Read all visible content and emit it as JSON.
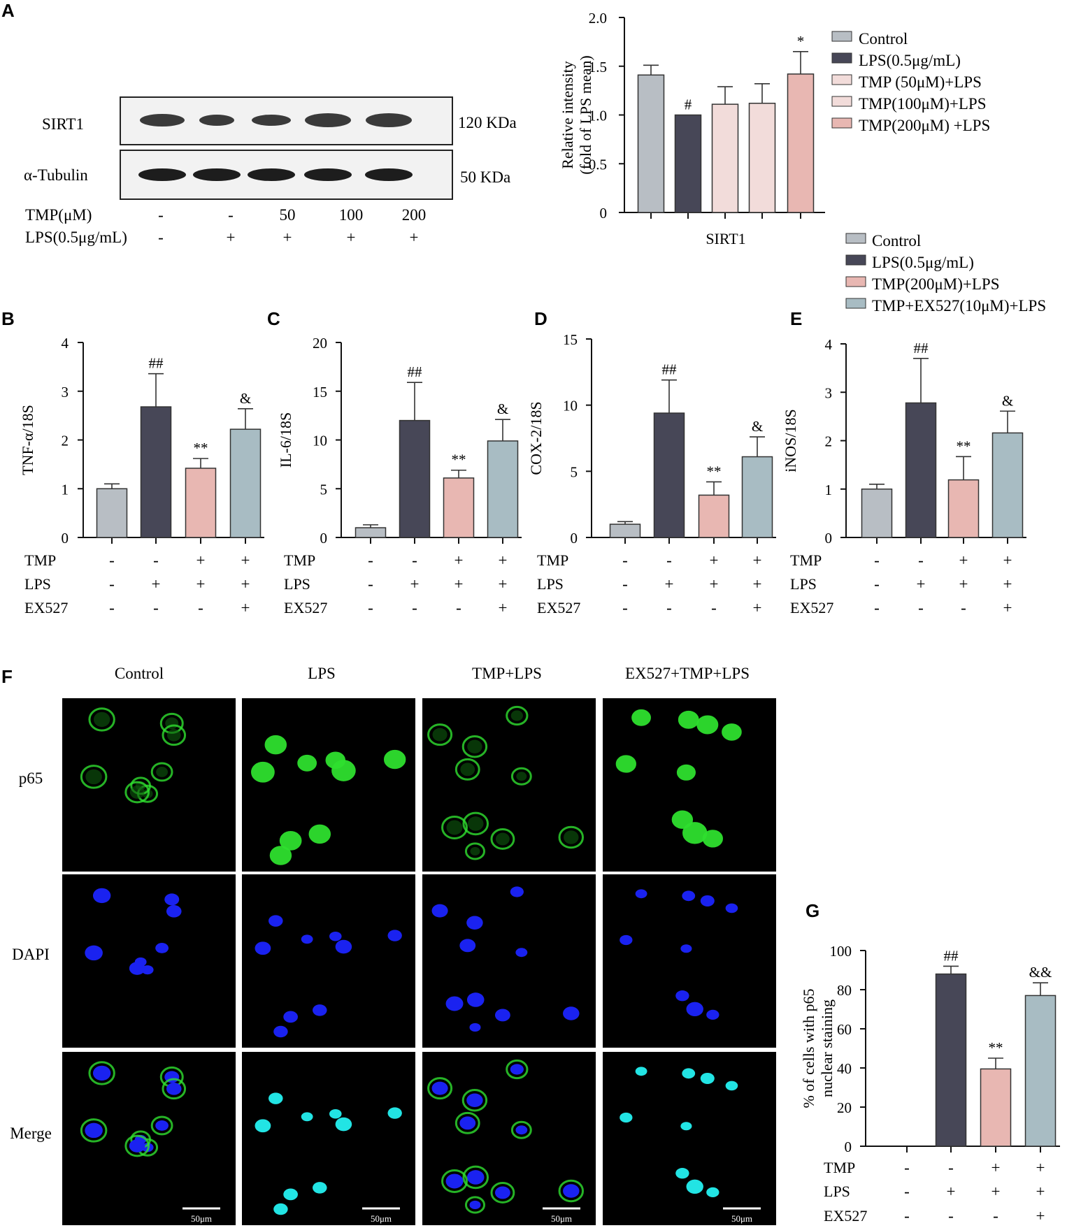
{
  "colors": {
    "control": "#B8BEC4",
    "lps": "#474757",
    "tmp_light": "#F2DCDA",
    "tmp200": "#E8B7B2",
    "ex527": "#A8BCC3",
    "p65": "#2FE02F",
    "dapi": "#1A22F0",
    "merge": "#22E4E4"
  },
  "panels": {
    "A": "A",
    "B": "B",
    "C": "C",
    "D": "D",
    "E": "E",
    "F": "F",
    "G": "G"
  },
  "blot": {
    "sirt1_label": "SIRT1",
    "tubulin_label": "α-Tubulin",
    "sirt1_kda": "120 KDa",
    "tubulin_kda": "50 KDa",
    "treat_rows": [
      {
        "label": "TMP(μM)",
        "values": [
          "-",
          "-",
          "50",
          "100",
          "200"
        ]
      },
      {
        "label": "LPS(0.5μg/mL)",
        "values": [
          "-",
          "+",
          "+",
          "+",
          "+"
        ]
      }
    ]
  },
  "legend_a": [
    "Control",
    "LPS(0.5μg/mL)",
    "TMP (50μM)+LPS",
    "TMP(100μM)+LPS",
    "TMP(200μM) +LPS"
  ],
  "legend_b": [
    "Control",
    "LPS(0.5μg/mL)",
    "TMP(200μM)+LPS",
    "TMP+EX527(10μM)+LPS"
  ],
  "treat_labels": [
    "TMP",
    "LPS",
    "EX527"
  ],
  "treat_signs": [
    [
      "-",
      "-",
      "+",
      "+"
    ],
    [
      "-",
      "+",
      "+",
      "+"
    ],
    [
      "-",
      "-",
      "-",
      "+"
    ]
  ],
  "chart_data": [
    {
      "panel": "A",
      "type": "bar",
      "categories": [
        "Control",
        "LPS(0.5μg/mL)",
        "TMP (50μM)+LPS",
        "TMP(100μM)+LPS",
        "TMP(200μM) +LPS"
      ],
      "values": [
        1.41,
        1.0,
        1.11,
        1.12,
        1.42
      ],
      "errors": [
        0.1,
        0,
        0.18,
        0.2,
        0.23
      ],
      "marks": [
        "",
        "#",
        "",
        "",
        "*"
      ],
      "xlabel": "SIRT1",
      "ylabel": [
        "Relative intensity",
        "(fold of LPS mean)"
      ],
      "ylim": [
        0,
        2.0
      ],
      "yticks": [
        "0",
        "0.5",
        "1.0",
        "1.5",
        "2.0"
      ]
    },
    {
      "panel": "B",
      "type": "bar",
      "categories": [
        "Control",
        "LPS(0.5μg/mL)",
        "TMP(200μM)+LPS",
        "TMP+EX527(10μM)+LPS"
      ],
      "values": [
        1.0,
        2.68,
        1.42,
        2.22
      ],
      "errors": [
        0.1,
        0.68,
        0.2,
        0.42
      ],
      "marks": [
        "",
        "##",
        "**",
        "&"
      ],
      "ylabel": "TNF-α/18S",
      "ylim": [
        0,
        4
      ],
      "yticks": [
        "0",
        "1",
        "2",
        "3",
        "4"
      ]
    },
    {
      "panel": "C",
      "type": "bar",
      "categories": [
        "Control",
        "LPS(0.5μg/mL)",
        "TMP(200μM)+LPS",
        "TMP+EX527(10μM)+LPS"
      ],
      "values": [
        1.0,
        12.0,
        6.1,
        9.9
      ],
      "errors": [
        0.3,
        3.9,
        0.8,
        2.2
      ],
      "marks": [
        "",
        "##",
        "**",
        "&"
      ],
      "ylabel": "IL-6/18S",
      "ylim": [
        0,
        20
      ],
      "yticks": [
        "0",
        "5",
        "10",
        "15",
        "20"
      ]
    },
    {
      "panel": "D",
      "type": "bar",
      "categories": [
        "Control",
        "LPS(0.5μg/mL)",
        "TMP(200μM)+LPS",
        "TMP+EX527(10μM)+LPS"
      ],
      "values": [
        1.0,
        9.4,
        3.2,
        6.1
      ],
      "errors": [
        0.2,
        2.5,
        1.0,
        1.5
      ],
      "marks": [
        "",
        "##",
        "**",
        "&"
      ],
      "ylabel": "COX-2/18S",
      "ylim": [
        0,
        15
      ],
      "yticks": [
        "0",
        "5",
        "10",
        "15"
      ]
    },
    {
      "panel": "E",
      "type": "bar",
      "categories": [
        "Control",
        "LPS(0.5μg/mL)",
        "TMP(200μM)+LPS",
        "TMP+EX527(10μM)+LPS"
      ],
      "values": [
        1.0,
        2.78,
        1.19,
        2.16
      ],
      "errors": [
        0.1,
        0.92,
        0.48,
        0.45
      ],
      "marks": [
        "",
        "##",
        "**",
        "&"
      ],
      "ylabel": "iNOS/18S",
      "ylim": [
        0,
        4
      ],
      "yticks": [
        "0",
        "1",
        "2",
        "3",
        "4"
      ]
    },
    {
      "panel": "G",
      "type": "bar",
      "categories": [
        "Control",
        "LPS(0.5μg/mL)",
        "TMP(200μM)+LPS",
        "TMP+EX527(10μM)+LPS"
      ],
      "values": [
        0,
        88,
        39.5,
        77
      ],
      "errors": [
        0,
        4,
        5.5,
        6.5
      ],
      "marks": [
        "",
        "##",
        "**",
        "&&"
      ],
      "ylabel": [
        "% of cells with p65",
        "nuclear staining"
      ],
      "ylim": [
        0,
        100
      ],
      "yticks": [
        "0",
        "20",
        "40",
        "60",
        "80",
        "100"
      ]
    }
  ],
  "micro": {
    "columns": [
      "Control",
      "LPS",
      "TMP+LPS",
      "EX527+TMP+LPS"
    ],
    "rows": [
      "p65",
      "DAPI",
      "Merge"
    ],
    "scalebar": "50μm"
  }
}
